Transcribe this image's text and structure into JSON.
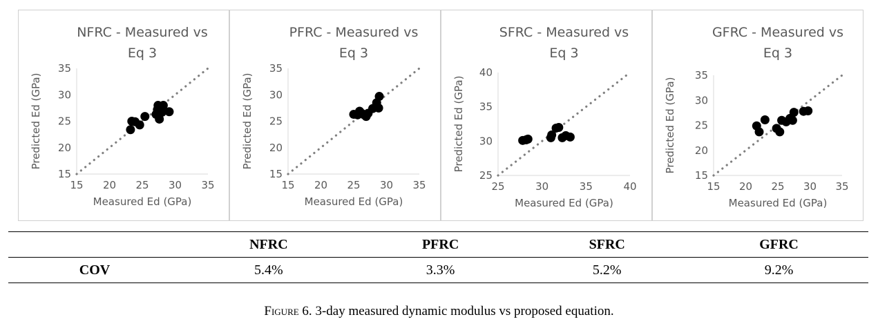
{
  "chart_data": [
    {
      "type": "scatter",
      "title_lines": [
        "NFRC - Measured vs",
        "Eq 3"
      ],
      "xlabel": "Measured Ed (GPa)",
      "ylabel": "Predicted Ed (GPa)",
      "xlim": [
        15,
        35
      ],
      "ylim": [
        15,
        35
      ],
      "xticks": [
        15,
        20,
        25,
        30,
        35
      ],
      "yticks": [
        15,
        20,
        25,
        30,
        35
      ],
      "grid": false,
      "reference_line": "y = x (dotted)",
      "points": [
        [
          23.2,
          23.4
        ],
        [
          23.4,
          25.0
        ],
        [
          23.9,
          24.9
        ],
        [
          24.6,
          24.3
        ],
        [
          25.4,
          25.9
        ],
        [
          27.1,
          26.3
        ],
        [
          27.3,
          27.2
        ],
        [
          27.4,
          28.0
        ],
        [
          27.6,
          25.4
        ],
        [
          28.0,
          26.7
        ],
        [
          28.2,
          28.0
        ],
        [
          29.1,
          26.8
        ]
      ]
    },
    {
      "type": "scatter",
      "title_lines": [
        "PFRC - Measured vs",
        "Eq 3"
      ],
      "xlabel": "Measured Ed (GPa)",
      "ylabel": "Predicted Ed (GPa)",
      "xlim": [
        15,
        35
      ],
      "ylim": [
        15,
        35
      ],
      "xticks": [
        15,
        20,
        25,
        30,
        35
      ],
      "yticks": [
        15,
        20,
        25,
        30,
        35
      ],
      "grid": false,
      "reference_line": "y = x (dotted)",
      "points": [
        [
          25.0,
          26.3
        ],
        [
          25.6,
          26.2
        ],
        [
          25.9,
          26.9
        ],
        [
          26.2,
          26.5
        ],
        [
          26.6,
          26.2
        ],
        [
          26.9,
          25.9
        ],
        [
          27.2,
          26.5
        ],
        [
          27.9,
          27.4
        ],
        [
          28.5,
          28.5
        ],
        [
          28.8,
          27.5
        ],
        [
          28.9,
          29.7
        ]
      ]
    },
    {
      "type": "scatter",
      "title_lines": [
        "SFRC - Measured vs",
        "Eq 3"
      ],
      "xlabel": "Measured Ed (GPa)",
      "ylabel": "Predicted Ed (GPa)",
      "xlim": [
        25,
        40
      ],
      "ylim": [
        25,
        40
      ],
      "xticks": [
        25,
        30,
        35,
        40
      ],
      "yticks": [
        25,
        30,
        35,
        40
      ],
      "grid": false,
      "reference_line": "y = x (dotted)",
      "points": [
        [
          27.8,
          30.1
        ],
        [
          28.2,
          30.2
        ],
        [
          28.4,
          30.3
        ],
        [
          31.0,
          30.5
        ],
        [
          31.1,
          30.9
        ],
        [
          31.6,
          31.9
        ],
        [
          31.9,
          32.0
        ],
        [
          32.3,
          30.5
        ],
        [
          32.7,
          30.8
        ],
        [
          33.2,
          30.6
        ]
      ]
    },
    {
      "type": "scatter",
      "title_lines": [
        "GFRC - Measured vs",
        "Eq 3"
      ],
      "xlabel": "Measured Ed (GPa)",
      "ylabel": "Predicted Ed (GPa)",
      "xlim": [
        15,
        35
      ],
      "ylim": [
        15,
        35
      ],
      "xticks": [
        15,
        20,
        25,
        30,
        35
      ],
      "yticks": [
        15,
        20,
        25,
        30,
        35
      ],
      "grid": false,
      "reference_line": "y = x (dotted)",
      "points": [
        [
          21.7,
          24.9
        ],
        [
          22.1,
          23.7
        ],
        [
          23.0,
          26.1
        ],
        [
          24.8,
          24.4
        ],
        [
          25.3,
          23.7
        ],
        [
          25.6,
          26.0
        ],
        [
          26.3,
          25.7
        ],
        [
          26.9,
          26.4
        ],
        [
          27.3,
          26.0
        ],
        [
          27.5,
          27.6
        ],
        [
          29.0,
          27.8
        ],
        [
          29.7,
          27.9
        ]
      ]
    }
  ],
  "table": {
    "headers": [
      "",
      "NFRC",
      "PFRC",
      "SFRC",
      "GFRC"
    ],
    "row": {
      "label": "COV",
      "values": [
        "5.4%",
        "3.3%",
        "5.2%",
        "9.2%"
      ]
    }
  },
  "caption": {
    "prefix": "Figure 6.",
    "text": " 3-day measured dynamic modulus vs proposed equation."
  },
  "colors": {
    "marker": "#000000",
    "reference_line": "#808080",
    "axis_text": "#595959",
    "axis_line": "#d9d9d9"
  }
}
